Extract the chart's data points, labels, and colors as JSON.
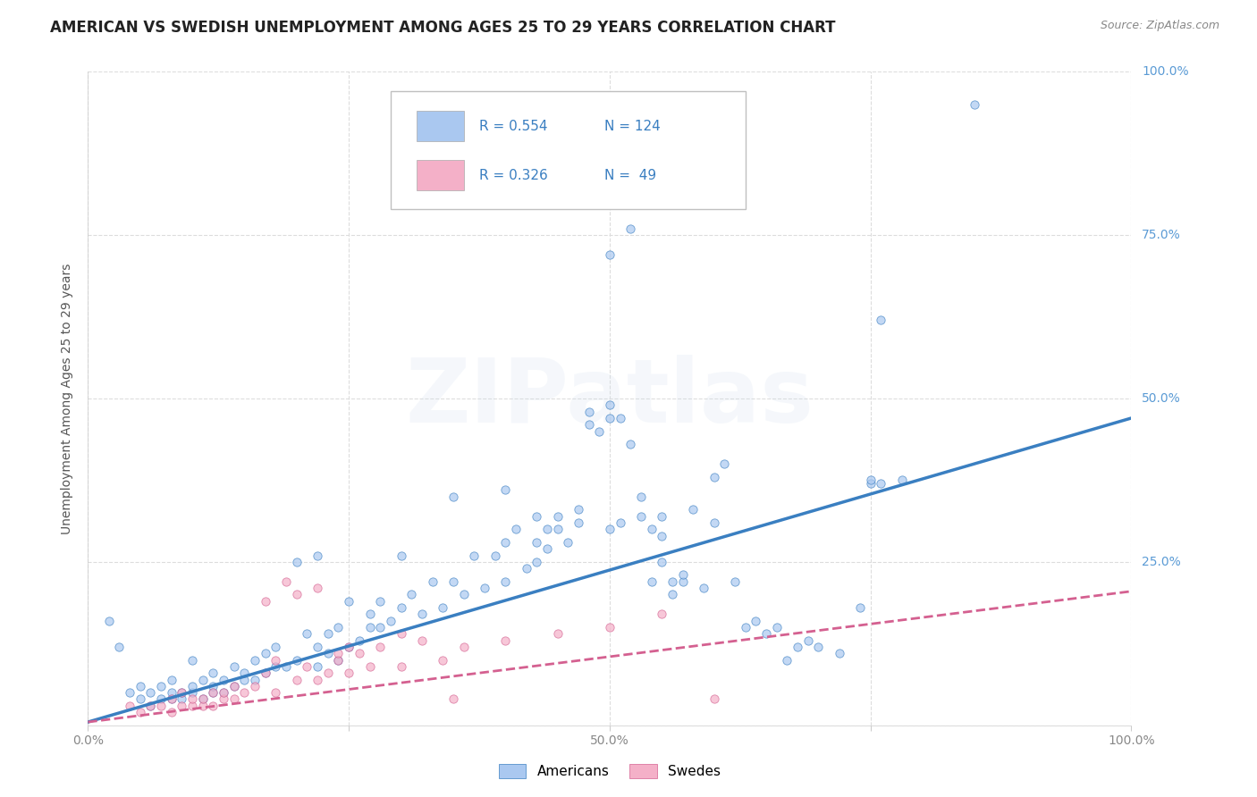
{
  "title": "AMERICAN VS SWEDISH UNEMPLOYMENT AMONG AGES 25 TO 29 YEARS CORRELATION CHART",
  "source": "Source: ZipAtlas.com",
  "ylabel": "Unemployment Among Ages 25 to 29 years",
  "xlim": [
    0,
    1
  ],
  "ylim": [
    0,
    1
  ],
  "x_tick_positions": [
    0.0,
    0.25,
    0.5,
    0.75,
    1.0
  ],
  "x_tick_labels": [
    "0.0%",
    "",
    "50.0%",
    "",
    "100.0%"
  ],
  "y_tick_positions": [
    0.0,
    0.25,
    0.5,
    0.75,
    1.0
  ],
  "y_tick_labels": [
    "",
    "25.0%",
    "50.0%",
    "75.0%",
    "100.0%"
  ],
  "watermark": "ZIPatlas",
  "legend_entries": [
    {
      "label": "Americans",
      "color": "#aac8f0",
      "R": 0.554,
      "N": 124
    },
    {
      "label": "Swedes",
      "color": "#f4b0c8",
      "R": 0.326,
      "N": 49
    }
  ],
  "blue_line": {
    "x0": 0.0,
    "y0": 0.005,
    "x1": 1.0,
    "y1": 0.47
  },
  "pink_line": {
    "x0": 0.0,
    "y0": 0.005,
    "x1": 1.0,
    "y1": 0.205
  },
  "blue_scatter": [
    [
      0.02,
      0.16
    ],
    [
      0.03,
      0.12
    ],
    [
      0.04,
      0.05
    ],
    [
      0.05,
      0.04
    ],
    [
      0.05,
      0.06
    ],
    [
      0.06,
      0.03
    ],
    [
      0.06,
      0.05
    ],
    [
      0.07,
      0.04
    ],
    [
      0.07,
      0.06
    ],
    [
      0.08,
      0.04
    ],
    [
      0.08,
      0.05
    ],
    [
      0.08,
      0.07
    ],
    [
      0.09,
      0.04
    ],
    [
      0.09,
      0.05
    ],
    [
      0.1,
      0.05
    ],
    [
      0.1,
      0.06
    ],
    [
      0.1,
      0.1
    ],
    [
      0.11,
      0.04
    ],
    [
      0.11,
      0.07
    ],
    [
      0.12,
      0.05
    ],
    [
      0.12,
      0.06
    ],
    [
      0.12,
      0.08
    ],
    [
      0.13,
      0.05
    ],
    [
      0.13,
      0.07
    ],
    [
      0.14,
      0.06
    ],
    [
      0.14,
      0.09
    ],
    [
      0.15,
      0.07
    ],
    [
      0.15,
      0.08
    ],
    [
      0.16,
      0.07
    ],
    [
      0.16,
      0.1
    ],
    [
      0.17,
      0.08
    ],
    [
      0.17,
      0.11
    ],
    [
      0.18,
      0.09
    ],
    [
      0.18,
      0.12
    ],
    [
      0.19,
      0.09
    ],
    [
      0.2,
      0.1
    ],
    [
      0.21,
      0.14
    ],
    [
      0.22,
      0.09
    ],
    [
      0.22,
      0.12
    ],
    [
      0.23,
      0.11
    ],
    [
      0.23,
      0.14
    ],
    [
      0.24,
      0.1
    ],
    [
      0.24,
      0.15
    ],
    [
      0.25,
      0.12
    ],
    [
      0.25,
      0.19
    ],
    [
      0.26,
      0.13
    ],
    [
      0.27,
      0.15
    ],
    [
      0.27,
      0.17
    ],
    [
      0.28,
      0.15
    ],
    [
      0.28,
      0.19
    ],
    [
      0.29,
      0.16
    ],
    [
      0.3,
      0.18
    ],
    [
      0.31,
      0.2
    ],
    [
      0.32,
      0.17
    ],
    [
      0.33,
      0.22
    ],
    [
      0.34,
      0.18
    ],
    [
      0.35,
      0.22
    ],
    [
      0.36,
      0.2
    ],
    [
      0.37,
      0.26
    ],
    [
      0.38,
      0.21
    ],
    [
      0.39,
      0.26
    ],
    [
      0.4,
      0.22
    ],
    [
      0.4,
      0.28
    ],
    [
      0.41,
      0.3
    ],
    [
      0.42,
      0.24
    ],
    [
      0.43,
      0.25
    ],
    [
      0.43,
      0.28
    ],
    [
      0.44,
      0.27
    ],
    [
      0.44,
      0.3
    ],
    [
      0.45,
      0.3
    ],
    [
      0.45,
      0.32
    ],
    [
      0.46,
      0.28
    ],
    [
      0.47,
      0.31
    ],
    [
      0.48,
      0.46
    ],
    [
      0.48,
      0.48
    ],
    [
      0.49,
      0.45
    ],
    [
      0.5,
      0.47
    ],
    [
      0.5,
      0.49
    ],
    [
      0.51,
      0.47
    ],
    [
      0.52,
      0.43
    ],
    [
      0.53,
      0.35
    ],
    [
      0.54,
      0.22
    ],
    [
      0.55,
      0.25
    ],
    [
      0.55,
      0.29
    ],
    [
      0.56,
      0.2
    ],
    [
      0.57,
      0.22
    ],
    [
      0.58,
      0.33
    ],
    [
      0.59,
      0.21
    ],
    [
      0.6,
      0.31
    ],
    [
      0.6,
      0.38
    ],
    [
      0.61,
      0.4
    ],
    [
      0.62,
      0.22
    ],
    [
      0.63,
      0.15
    ],
    [
      0.64,
      0.16
    ],
    [
      0.65,
      0.14
    ],
    [
      0.66,
      0.15
    ],
    [
      0.67,
      0.1
    ],
    [
      0.68,
      0.12
    ],
    [
      0.69,
      0.13
    ],
    [
      0.7,
      0.12
    ],
    [
      0.72,
      0.11
    ],
    [
      0.74,
      0.18
    ],
    [
      0.75,
      0.37
    ],
    [
      0.76,
      0.62
    ],
    [
      0.5,
      0.72
    ],
    [
      0.52,
      0.76
    ],
    [
      0.85,
      0.95
    ],
    [
      0.35,
      0.35
    ],
    [
      0.4,
      0.36
    ],
    [
      0.43,
      0.32
    ],
    [
      0.47,
      0.33
    ],
    [
      0.5,
      0.3
    ],
    [
      0.51,
      0.31
    ],
    [
      0.53,
      0.32
    ],
    [
      0.54,
      0.3
    ],
    [
      0.55,
      0.32
    ],
    [
      0.56,
      0.22
    ],
    [
      0.57,
      0.23
    ],
    [
      0.2,
      0.25
    ],
    [
      0.3,
      0.26
    ],
    [
      0.22,
      0.26
    ],
    [
      0.75,
      0.375
    ],
    [
      0.76,
      0.37
    ],
    [
      0.78,
      0.375
    ]
  ],
  "pink_scatter": [
    [
      0.04,
      0.03
    ],
    [
      0.05,
      0.02
    ],
    [
      0.06,
      0.03
    ],
    [
      0.07,
      0.03
    ],
    [
      0.08,
      0.02
    ],
    [
      0.08,
      0.04
    ],
    [
      0.09,
      0.03
    ],
    [
      0.09,
      0.05
    ],
    [
      0.1,
      0.03
    ],
    [
      0.1,
      0.04
    ],
    [
      0.11,
      0.03
    ],
    [
      0.11,
      0.04
    ],
    [
      0.12,
      0.03
    ],
    [
      0.12,
      0.05
    ],
    [
      0.13,
      0.04
    ],
    [
      0.13,
      0.05
    ],
    [
      0.14,
      0.04
    ],
    [
      0.14,
      0.06
    ],
    [
      0.15,
      0.05
    ],
    [
      0.16,
      0.06
    ],
    [
      0.17,
      0.08
    ],
    [
      0.17,
      0.19
    ],
    [
      0.18,
      0.05
    ],
    [
      0.18,
      0.1
    ],
    [
      0.19,
      0.22
    ],
    [
      0.2,
      0.07
    ],
    [
      0.2,
      0.2
    ],
    [
      0.21,
      0.09
    ],
    [
      0.22,
      0.07
    ],
    [
      0.22,
      0.21
    ],
    [
      0.23,
      0.08
    ],
    [
      0.24,
      0.1
    ],
    [
      0.24,
      0.11
    ],
    [
      0.25,
      0.08
    ],
    [
      0.25,
      0.12
    ],
    [
      0.26,
      0.11
    ],
    [
      0.27,
      0.09
    ],
    [
      0.28,
      0.12
    ],
    [
      0.3,
      0.09
    ],
    [
      0.3,
      0.14
    ],
    [
      0.32,
      0.13
    ],
    [
      0.34,
      0.1
    ],
    [
      0.35,
      0.04
    ],
    [
      0.36,
      0.12
    ],
    [
      0.4,
      0.13
    ],
    [
      0.45,
      0.14
    ],
    [
      0.5,
      0.15
    ],
    [
      0.55,
      0.17
    ],
    [
      0.6,
      0.04
    ]
  ],
  "grid_color": "#dddddd",
  "background_color": "#ffffff",
  "blue_scatter_color": "#aac8f0",
  "pink_scatter_color": "#f4b0c8",
  "blue_line_color": "#3a7fc1",
  "pink_line_color": "#d46090",
  "title_fontsize": 12,
  "axis_label_fontsize": 10,
  "tick_fontsize": 10,
  "watermark_alpha": 0.18,
  "watermark_fontsize": 72,
  "right_tick_color": "#5b9bd5",
  "legend_text_color": "#3a7fc1"
}
